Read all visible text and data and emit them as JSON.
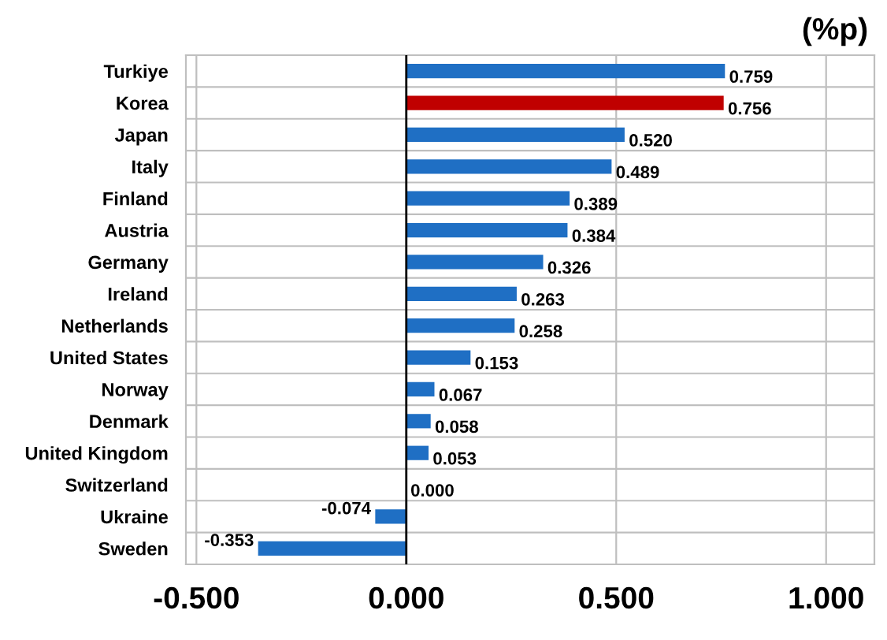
{
  "chart_data": {
    "type": "bar",
    "orientation": "horizontal",
    "title": "(%p)",
    "categories": [
      "Turkiye",
      "Korea",
      "Japan",
      "Italy",
      "Finland",
      "Austria",
      "Germany",
      "Ireland",
      "Netherlands",
      "United States",
      "Norway",
      "Denmark",
      "United Kingdom",
      "Switzerland",
      "Ukraine",
      "Sweden"
    ],
    "values": [
      0.759,
      0.756,
      0.52,
      0.489,
      0.389,
      0.384,
      0.326,
      0.263,
      0.258,
      0.153,
      0.067,
      0.058,
      0.053,
      0.0,
      -0.074,
      -0.353
    ],
    "value_labels": [
      "0.759",
      "0.756",
      "0.520",
      "0.489",
      "0.389",
      "0.384",
      "0.326",
      "0.263",
      "0.258",
      "0.153",
      "0.067",
      "0.058",
      "0.053",
      "0.000",
      "-0.074",
      "-0.353"
    ],
    "colors": [
      "#1f6fc4",
      "#c00000",
      "#1f6fc4",
      "#1f6fc4",
      "#1f6fc4",
      "#1f6fc4",
      "#1f6fc4",
      "#1f6fc4",
      "#1f6fc4",
      "#1f6fc4",
      "#1f6fc4",
      "#1f6fc4",
      "#1f6fc4",
      "#1f6fc4",
      "#1f6fc4",
      "#1f6fc4"
    ],
    "xlim": [
      -0.525,
      1.115
    ],
    "xticks": [
      {
        "value": -0.5,
        "label": "-0.500"
      },
      {
        "value": 0,
        "label": "0.000"
      },
      {
        "value": 0.5,
        "label": "0.500"
      },
      {
        "value": 1.0,
        "label": "1.000"
      }
    ],
    "ref_lines": [
      {
        "axis": "x",
        "value": 0,
        "color": "#000000"
      }
    ],
    "grid": true
  }
}
